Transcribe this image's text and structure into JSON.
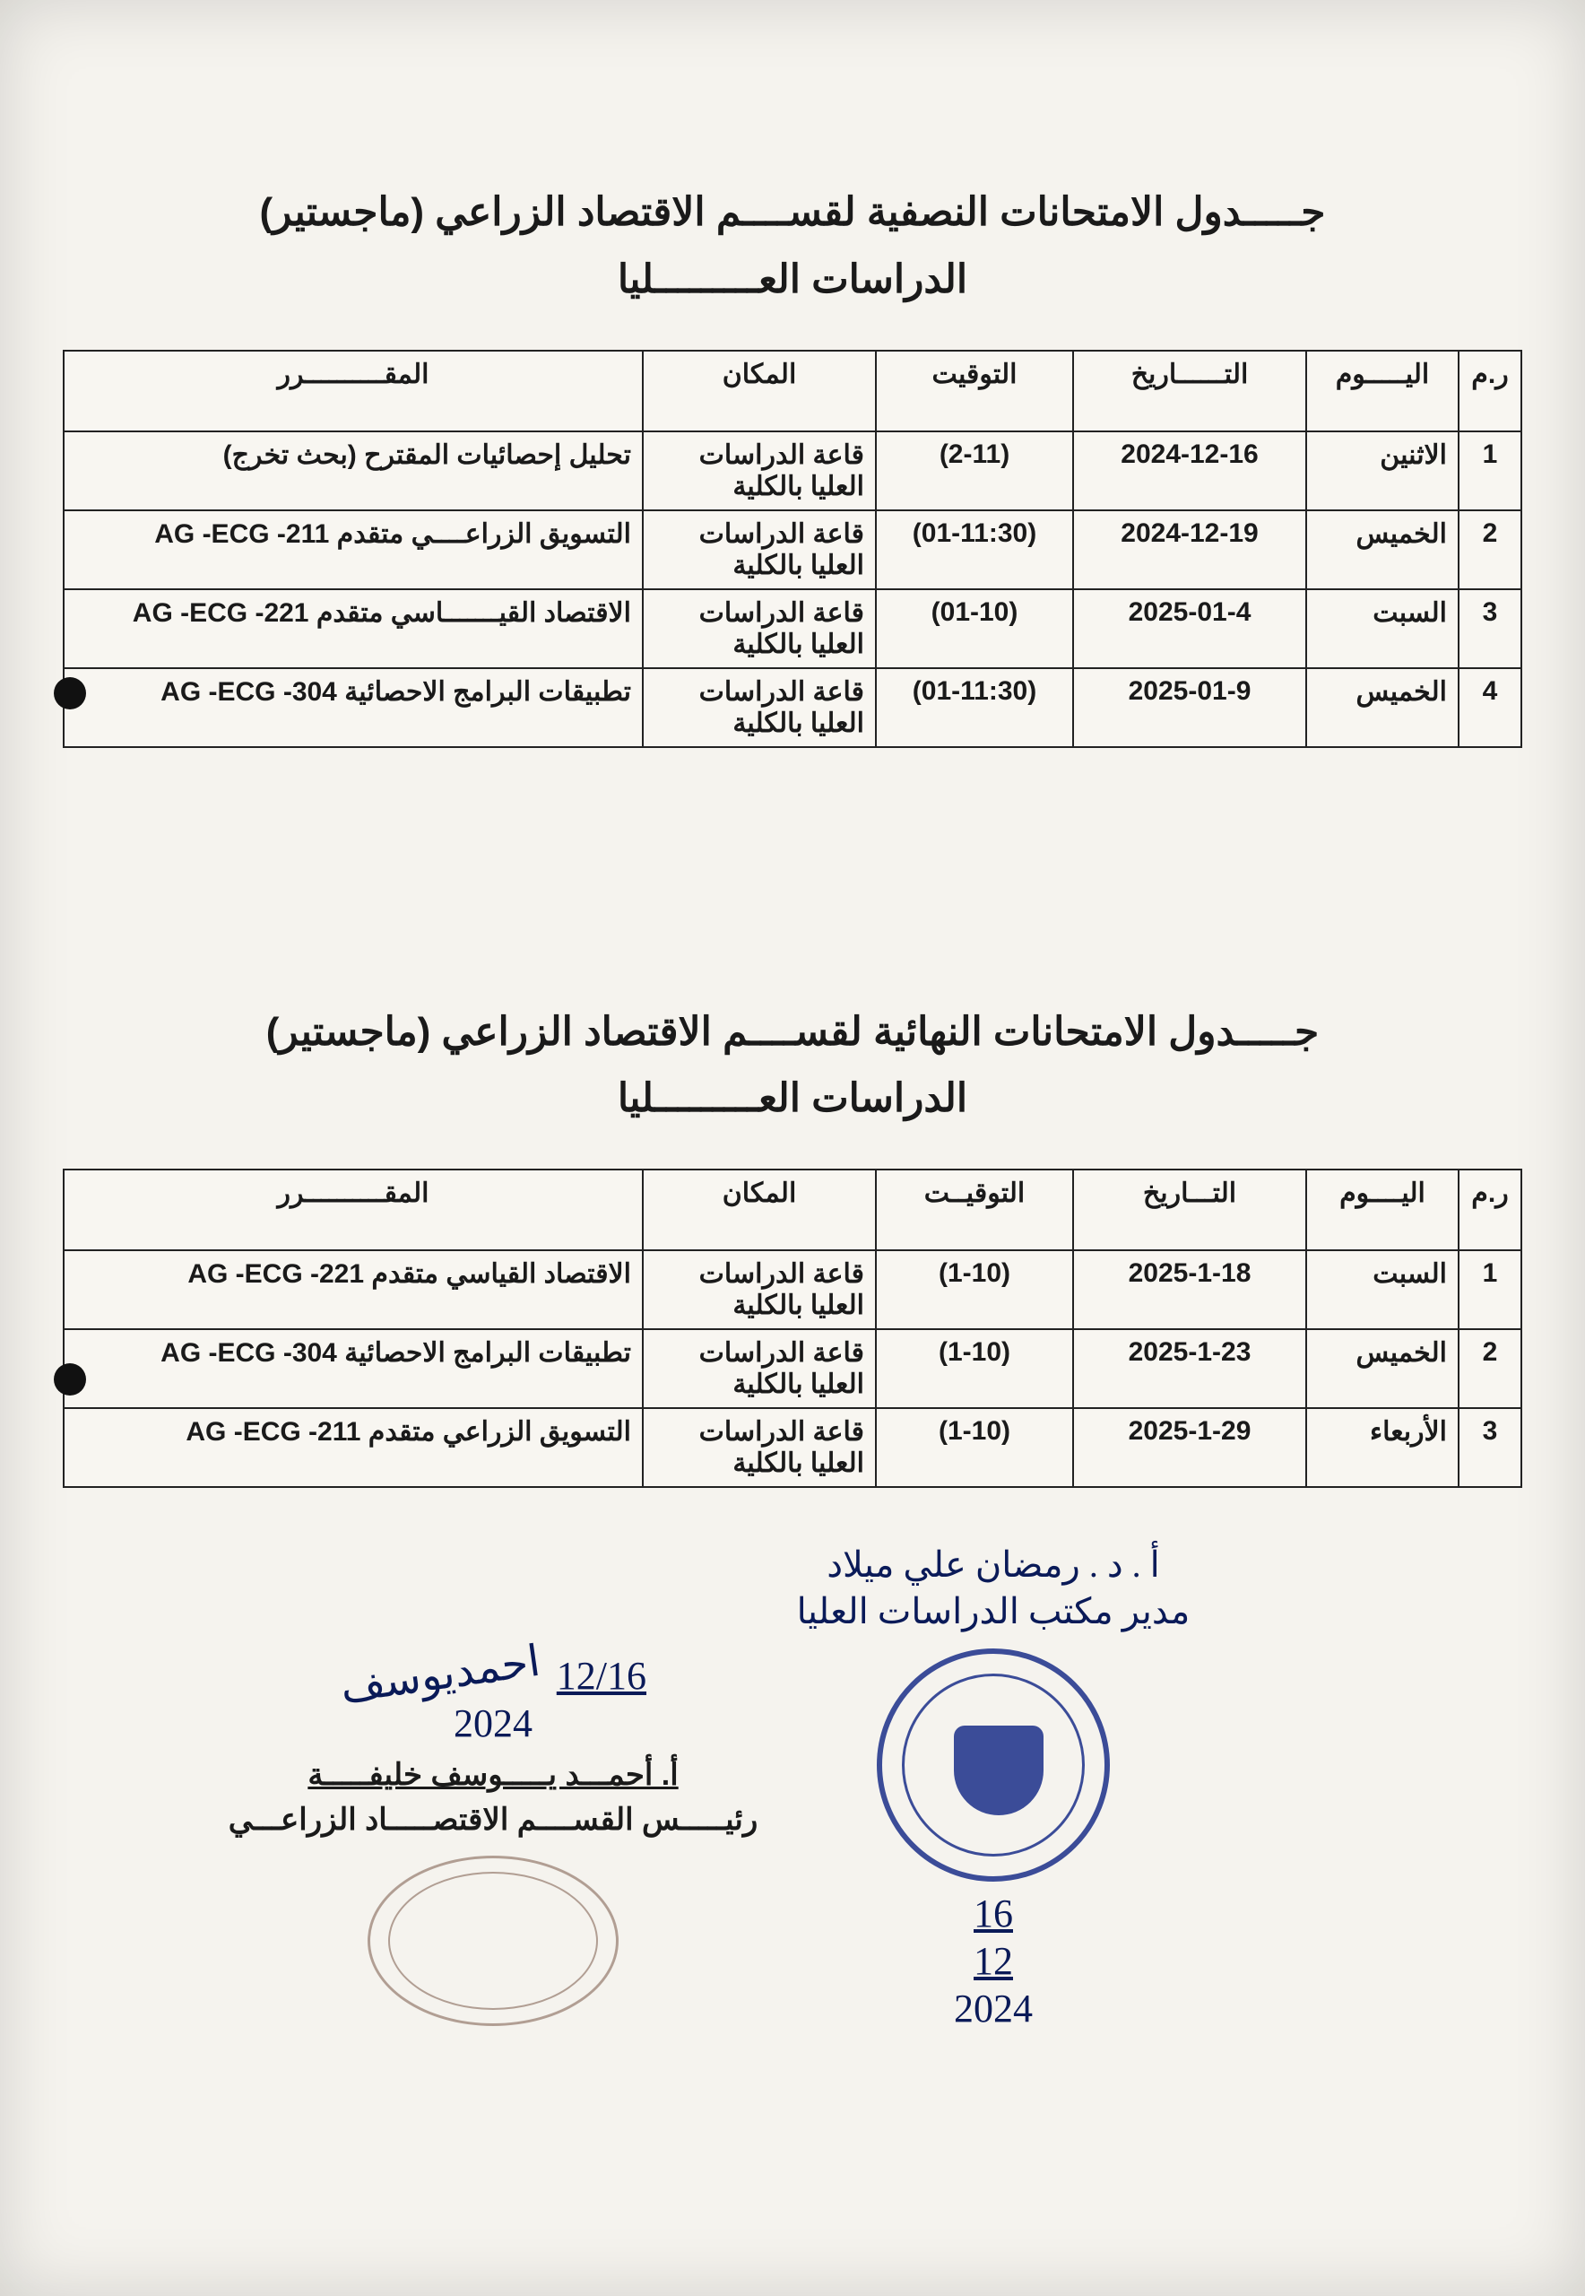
{
  "section1": {
    "title1": "جـــــدول الامتحانات النصفية لقســــم الاقتصاد الزراعي (ماجستير)",
    "title2": "الدراسات العـــــــــليا",
    "headers": {
      "num": "ر.م",
      "day": "اليـــــوم",
      "date": "التــــــاريخ",
      "time": "التوقيت",
      "place": "المكان",
      "course": "المقــــــــــرر"
    },
    "rows": [
      {
        "num": "1",
        "day": "الاثنين",
        "date": "2024-12-16",
        "time": "(2-11)",
        "place": "قاعة الدراسات العليا بالكلية",
        "course": "تحليل إحصائيات المقترح  (بحث تخرج)"
      },
      {
        "num": "2",
        "day": "الخميس",
        "date": "2024-12-19",
        "time": "(01-11:30)",
        "place": "قاعة الدراسات العليا بالكلية",
        "course": "التسويق الزراعــــي متقدم  AG -ECG -211"
      },
      {
        "num": "3",
        "day": "السبت",
        "date": "2025-01-4",
        "time": "(01-10)",
        "place": "قاعة الدراسات العليا بالكلية",
        "course": "الاقتصاد القيـــــــاسي متقدم AG -ECG -221"
      },
      {
        "num": "4",
        "day": "الخميس",
        "date": "2025-01-9",
        "time": "(01-11:30)",
        "place": "قاعة الدراسات العليا بالكلية",
        "course": "تطبيقات البرامج الاحصائية AG -ECG -304"
      }
    ]
  },
  "section2": {
    "title1": "جـــــدول الامتحانات النهائية لقســــم الاقتصاد الزراعي (ماجستير)",
    "title2": "الدراسات العـــــــــليا",
    "headers": {
      "num": "ر.م",
      "day": "اليــــوم",
      "date": "التـــاريخ",
      "time": "التوقيــت",
      "place": "المكان",
      "course": "المقــــــــــرر"
    },
    "rows": [
      {
        "num": "1",
        "day": "السبت",
        "date": "2025-1-18",
        "time": "(1-10)",
        "place": "قاعة الدراسات العليا بالكلية",
        "course": "الاقتصاد القياسي متقدم AG -ECG -221"
      },
      {
        "num": "2",
        "day": "الخميس",
        "date": "2025-1-23",
        "time": "(1-10)",
        "place": "قاعة الدراسات العليا بالكلية",
        "course": "تطبيقات البرامج الاحصائية AG -ECG -304"
      },
      {
        "num": "3",
        "day": "الأربعاء",
        "date": "2025-1-29",
        "time": "(1-10)",
        "place": "قاعة الدراسات العليا بالكلية",
        "course": "التسويق الزراعي متقدم  AG -ECG -211"
      }
    ]
  },
  "signatures": {
    "right_hand1": "أ . د . رمضان علي ميلاد",
    "right_hand2": "مدير مكتب الدراسات العليا",
    "right_date1": "16",
    "right_date2": "12",
    "right_date3": "2024",
    "left_date": "12/16",
    "left_year": "2024",
    "left_name": "أ. أحمـــد يـــــوسف خليفـــــة",
    "left_title": "رئيـــــس القســــم الاقتصـــــاد الزراعـــي"
  },
  "style": {
    "page_bg": "#f5f3ee",
    "border_color": "#222222",
    "text_color": "#1a1a1a",
    "ink_color": "#0a1a58",
    "stamp_color": "#1b2f8a",
    "title_fontsize": 44,
    "cell_fontsize": 30
  }
}
